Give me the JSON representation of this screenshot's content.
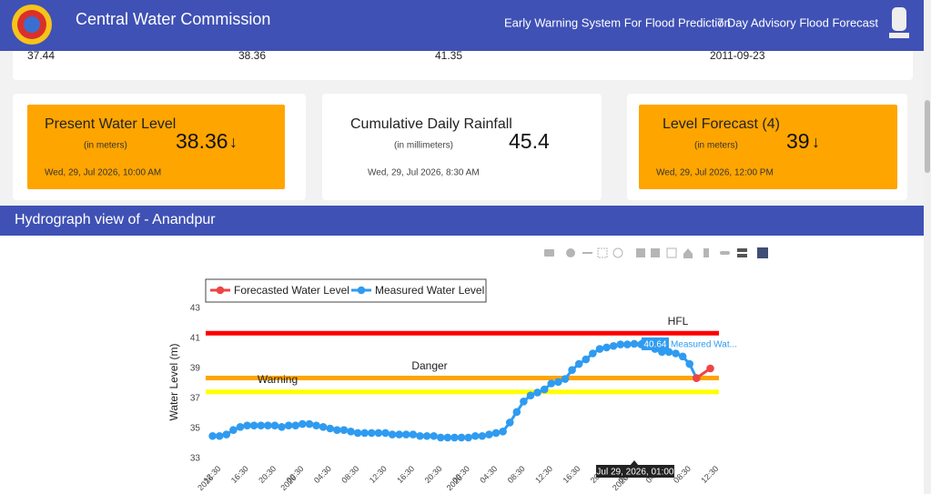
{
  "header": {
    "title": "Central Water Commission",
    "nav": [
      "Early Warning System For Flood Prediction",
      "7 Day Advisory Flood Forecast"
    ]
  },
  "summary_row": [
    37.44,
    38.36,
    41.35,
    "2011-09-23"
  ],
  "cards": [
    {
      "title": "Present Water Level",
      "unit": "(in meters)",
      "value": 38.36,
      "trend": "↓",
      "date": "Wed, 29, Jul 2026, 10:00 AM"
    },
    {
      "title": "Cumulative Daily Rainfall",
      "unit": "(in millimeters)",
      "value": 45.4,
      "date": "Wed, 29, Jul 2026, 8:30 AM"
    },
    {
      "title": "Level Forecast (4)",
      "unit": "(in meters)",
      "value": 39,
      "trend": "↓",
      "date": "Wed, 29, Jul 2026, 12:00 PM"
    }
  ],
  "section_title": "Hydrograph view of - Anandpur",
  "chart_data": {
    "type": "line",
    "y_label": "Water Level (m)",
    "ylim": [
      33,
      43
    ],
    "yticks": [
      33,
      35,
      37,
      39,
      41,
      43
    ],
    "xlim": [
      "2026-07-26T11:00",
      "2026-07-29T13:15"
    ],
    "xticks": [
      {
        "value": "2026-07-26T12:30",
        "label": "12:30",
        "sublabel": "2026"
      },
      {
        "value": "2026-07-26T16:30",
        "label": "16:30"
      },
      {
        "value": "2026-07-26T20:30",
        "label": "20:30"
      },
      {
        "value": "2026-07-27T00:30",
        "label": "00:30",
        "sublabel": "2026"
      },
      {
        "value": "2026-07-27T04:30",
        "label": "04:30"
      },
      {
        "value": "2026-07-27T08:30",
        "label": "08:30"
      },
      {
        "value": "2026-07-27T12:30",
        "label": "12:30"
      },
      {
        "value": "2026-07-27T16:30",
        "label": "16:30"
      },
      {
        "value": "2026-07-27T20:30",
        "label": "20:30"
      },
      {
        "value": "2026-07-28T00:30",
        "label": "00:30",
        "sublabel": "2026"
      },
      {
        "value": "2026-07-28T04:30",
        "label": "04:30"
      },
      {
        "value": "2026-07-28T08:30",
        "label": "08:30"
      },
      {
        "value": "2026-07-28T12:30",
        "label": "12:30"
      },
      {
        "value": "2026-07-28T16:30",
        "label": "16:30"
      },
      {
        "value": "2026-07-28T20:30",
        "label": "20:30"
      },
      {
        "value": "2026-07-29T00:30",
        "label": "00:30",
        "sublabel": "2026"
      },
      {
        "value": "2026-07-29T04:30",
        "label": "04:30"
      },
      {
        "value": "2026-07-29T08:30",
        "label": "08:30"
      },
      {
        "value": "2026-07-29T12:30",
        "label": "12:30"
      }
    ],
    "grid": false,
    "reference_lines": [
      {
        "name": "HFL",
        "value": 41.35,
        "color": "#ff0000"
      },
      {
        "name": "Danger",
        "value": 38.36,
        "color": "#ffa500"
      },
      {
        "name": "Warning",
        "value": 37.44,
        "color": "#ffff00"
      }
    ],
    "series": [
      {
        "name": "Forecasted Water Level",
        "color": "#ef4444",
        "x": [
          "2026-07-29T10:00",
          "2026-07-29T12:00"
        ],
        "values": [
          38.36,
          39
        ]
      },
      {
        "name": "Measured Water Level",
        "color": "#2f9bf0",
        "x": [
          "2026-07-26T12:00",
          "2026-07-26T13:00",
          "2026-07-26T14:00",
          "2026-07-26T15:00",
          "2026-07-26T16:00",
          "2026-07-26T17:00",
          "2026-07-26T18:00",
          "2026-07-26T19:00",
          "2026-07-26T20:00",
          "2026-07-26T21:00",
          "2026-07-26T22:00",
          "2026-07-26T23:00",
          "2026-07-27T00:00",
          "2026-07-27T01:00",
          "2026-07-27T02:00",
          "2026-07-27T03:00",
          "2026-07-27T04:00",
          "2026-07-27T05:00",
          "2026-07-27T06:00",
          "2026-07-27T07:00",
          "2026-07-27T08:00",
          "2026-07-27T09:00",
          "2026-07-27T10:00",
          "2026-07-27T11:00",
          "2026-07-27T12:00",
          "2026-07-27T13:00",
          "2026-07-27T14:00",
          "2026-07-27T15:00",
          "2026-07-27T16:00",
          "2026-07-27T17:00",
          "2026-07-27T18:00",
          "2026-07-27T19:00",
          "2026-07-27T20:00",
          "2026-07-27T21:00",
          "2026-07-27T22:00",
          "2026-07-27T23:00",
          "2026-07-28T00:00",
          "2026-07-28T01:00",
          "2026-07-28T02:00",
          "2026-07-28T03:00",
          "2026-07-28T04:00",
          "2026-07-28T05:00",
          "2026-07-28T06:00",
          "2026-07-28T07:00",
          "2026-07-28T08:00",
          "2026-07-28T09:00",
          "2026-07-28T10:00",
          "2026-07-28T11:00",
          "2026-07-28T12:00",
          "2026-07-28T13:00",
          "2026-07-28T14:00",
          "2026-07-28T15:00",
          "2026-07-28T16:00",
          "2026-07-28T17:00",
          "2026-07-28T18:00",
          "2026-07-28T19:00",
          "2026-07-28T20:00",
          "2026-07-28T21:00",
          "2026-07-28T22:00",
          "2026-07-28T23:00",
          "2026-07-29T00:00",
          "2026-07-29T01:00",
          "2026-07-29T02:00",
          "2026-07-29T03:00",
          "2026-07-29T04:00",
          "2026-07-29T05:00",
          "2026-07-29T06:00",
          "2026-07-29T07:00",
          "2026-07-29T08:00",
          "2026-07-29T09:00",
          "2026-07-29T10:00"
        ],
        "values": [
          34.5,
          34.5,
          34.6,
          34.9,
          35.1,
          35.2,
          35.2,
          35.2,
          35.2,
          35.2,
          35.1,
          35.2,
          35.2,
          35.3,
          35.3,
          35.2,
          35.1,
          35.0,
          34.9,
          34.9,
          34.8,
          34.7,
          34.7,
          34.7,
          34.7,
          34.7,
          34.6,
          34.6,
          34.6,
          34.6,
          34.5,
          34.5,
          34.5,
          34.4,
          34.4,
          34.4,
          34.4,
          34.4,
          34.5,
          34.5,
          34.6,
          34.7,
          34.8,
          35.4,
          36.1,
          36.8,
          37.2,
          37.4,
          37.6,
          38.0,
          38.1,
          38.3,
          38.9,
          39.3,
          39.6,
          40.0,
          40.3,
          40.4,
          40.5,
          40.6,
          40.6,
          40.64,
          40.6,
          40.5,
          40.3,
          40.1,
          40.1,
          40.0,
          39.8,
          39.3,
          38.36
        ]
      }
    ],
    "hover": {
      "name": "Measured Wat...",
      "x": "Jul 29, 2026, 01:00"
    }
  }
}
